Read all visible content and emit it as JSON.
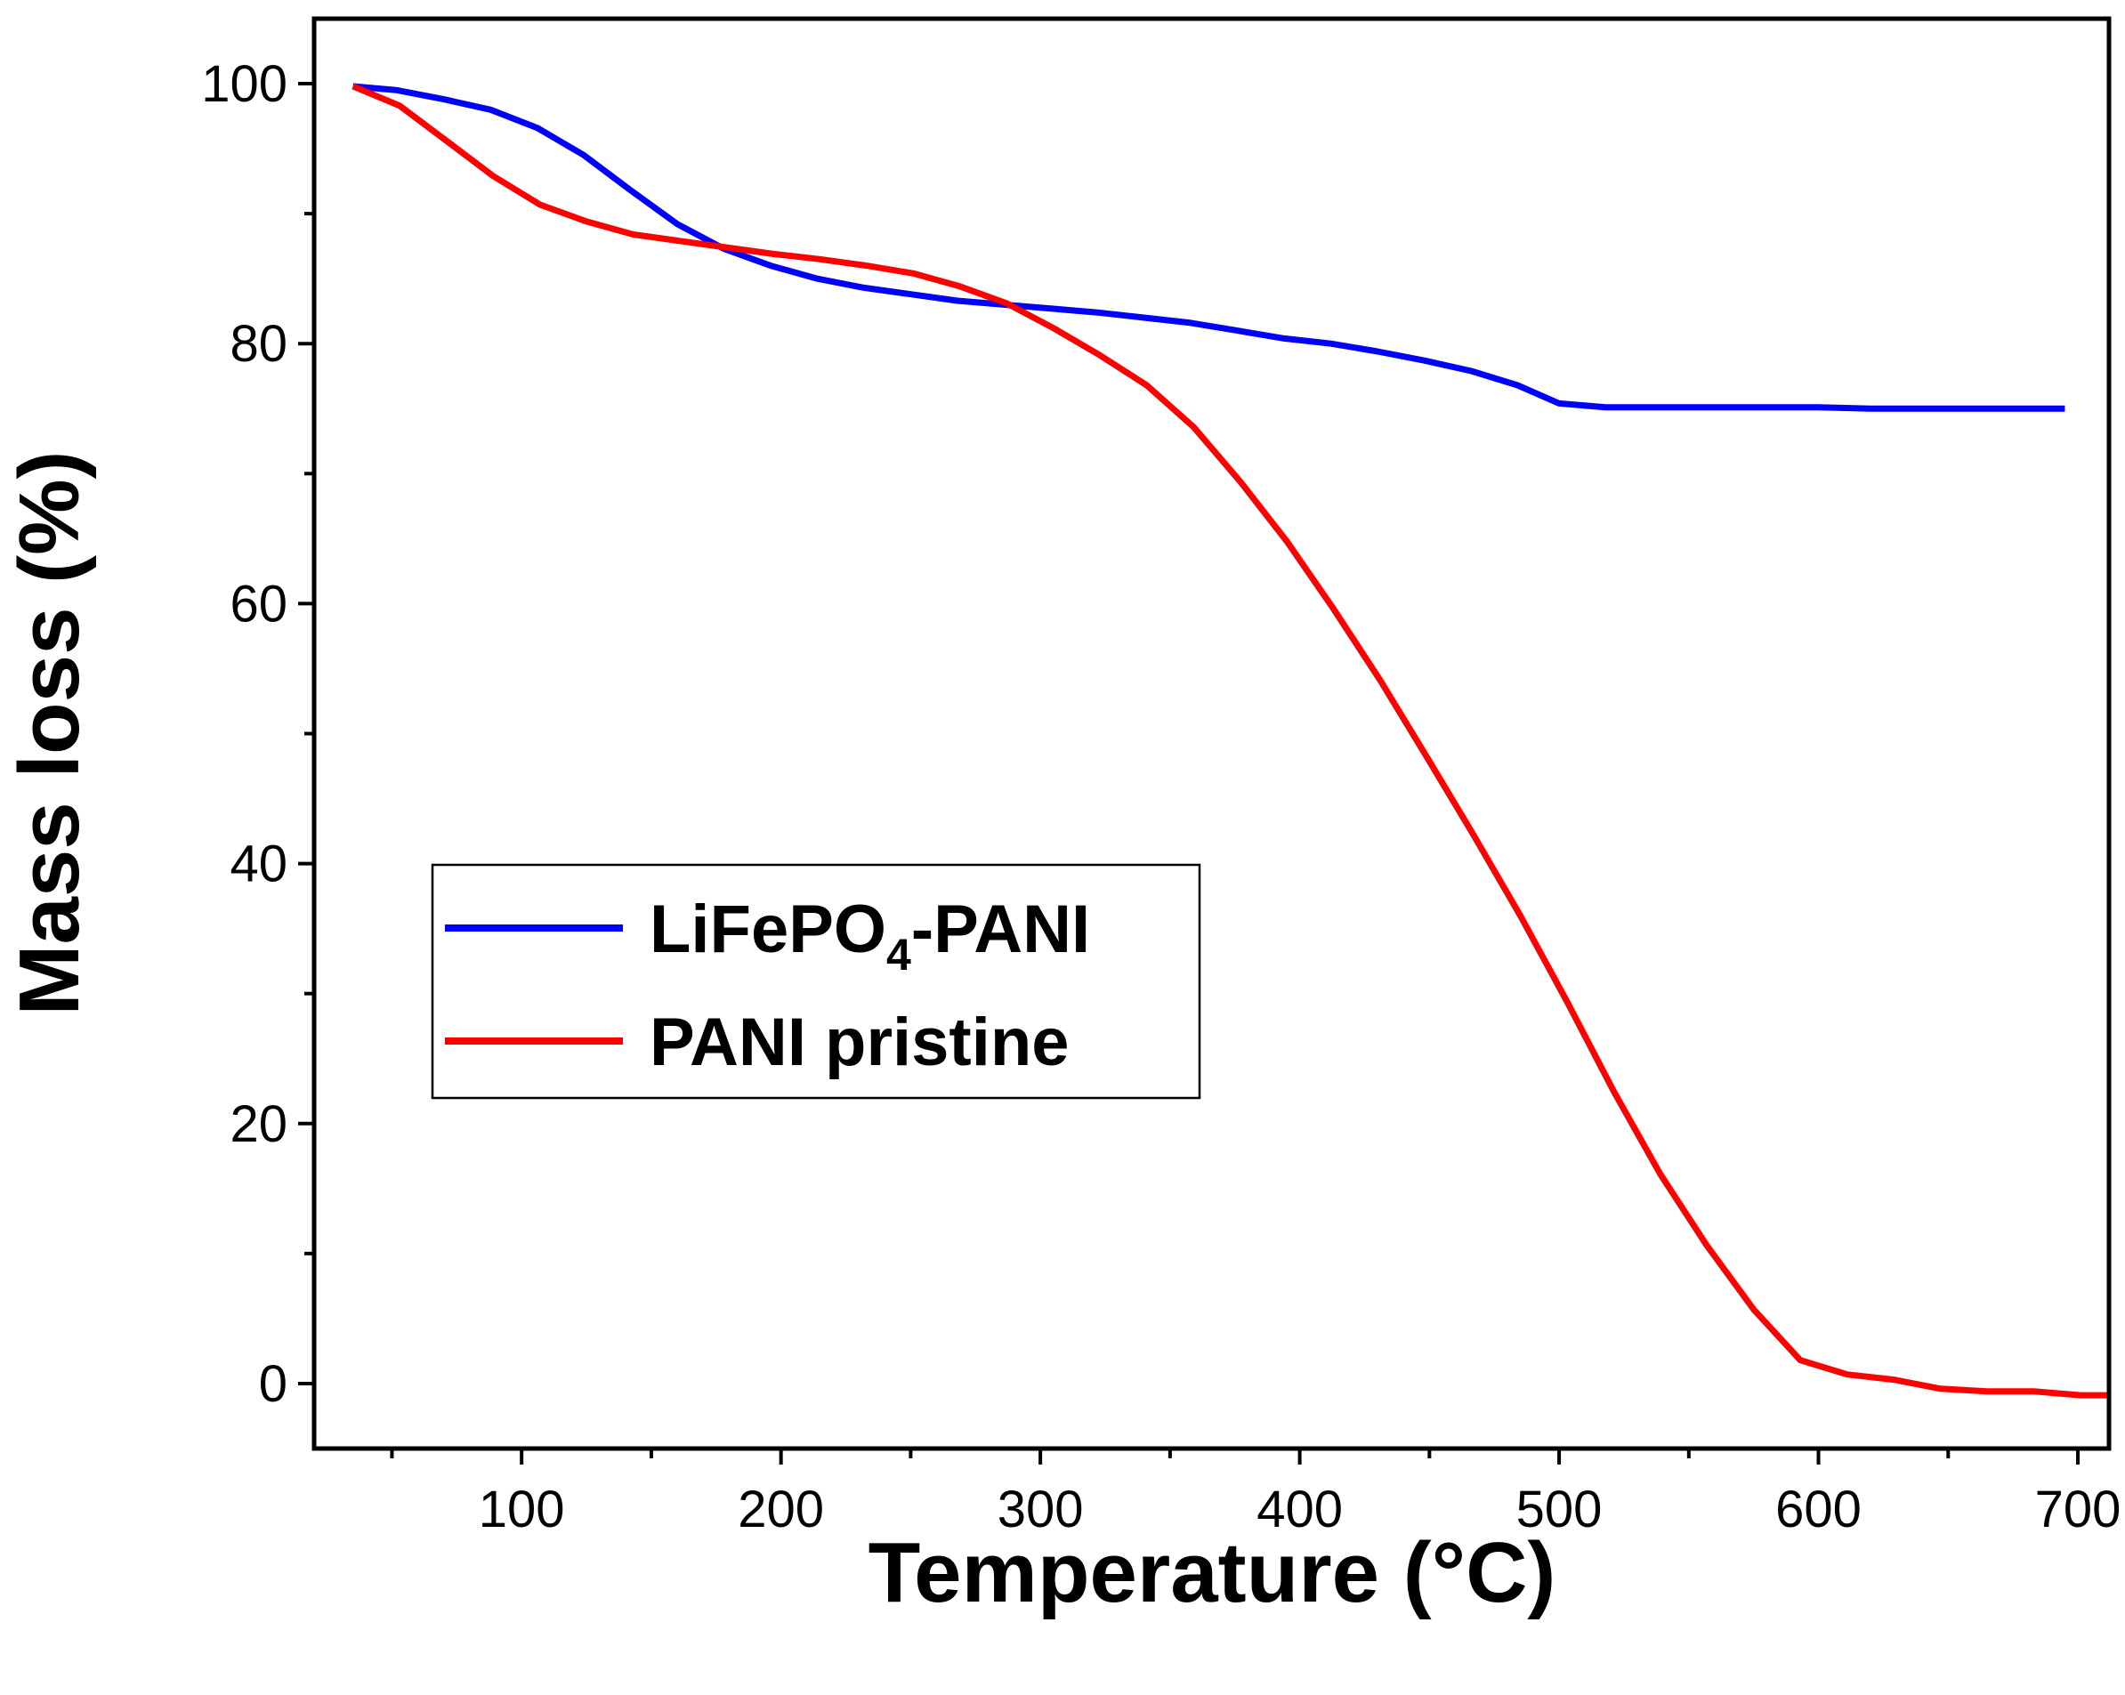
{
  "chart_data": {
    "type": "line",
    "title": "",
    "xlabel": "Temperature (°C)",
    "ylabel": "Mass loss (%)",
    "xlim": [
      20,
      712
    ],
    "ylim": [
      -5,
      105
    ],
    "xticks": [
      100,
      200,
      300,
      400,
      500,
      600,
      700
    ],
    "yticks": [
      0,
      20,
      40,
      60,
      80,
      100
    ],
    "x_minor_step": 50,
    "y_minor_step": 10,
    "grid": false,
    "legend_position": "center-left",
    "series": [
      {
        "name": "LiFePO4-PANI",
        "legend_main": "LiFePO",
        "legend_sub": "4",
        "legend_tail": "-PANI",
        "color": "#0000ff",
        "x": [
          35,
          52,
          70,
          88,
          106,
          124,
          142,
          160,
          178,
          196,
          214,
          232,
          250,
          268,
          286,
          304,
          322,
          340,
          358,
          376,
          394,
          412,
          430,
          448,
          466,
          484,
          500,
          518,
          540,
          560,
          580,
          600,
          620,
          640,
          660,
          680,
          695
        ],
        "y": [
          99.8,
          99.5,
          98.8,
          98.0,
          96.6,
          94.5,
          91.8,
          89.2,
          87.3,
          86.0,
          85.0,
          84.3,
          83.8,
          83.3,
          83.0,
          82.7,
          82.4,
          82.0,
          81.6,
          81.0,
          80.4,
          80.0,
          79.4,
          78.7,
          77.9,
          76.8,
          75.4,
          75.1,
          75.1,
          75.1,
          75.1,
          75.1,
          75.0,
          75.0,
          75.0,
          75.0,
          75.0
        ]
      },
      {
        "name": "PANI pristine",
        "legend_main": "PANI pristine",
        "legend_sub": "",
        "legend_tail": "",
        "color": "#ff0000",
        "x": [
          35,
          53,
          71,
          89,
          107,
          125,
          143,
          161,
          179,
          197,
          215,
          233,
          251,
          269,
          287,
          305,
          323,
          341,
          359,
          377,
          395,
          413,
          431,
          449,
          467,
          485,
          503,
          521,
          539,
          557,
          575,
          593,
          611,
          629,
          647,
          665,
          683,
          701,
          712
        ],
        "y": [
          99.8,
          98.3,
          95.6,
          92.9,
          90.7,
          89.4,
          88.4,
          87.9,
          87.4,
          86.9,
          86.5,
          86.0,
          85.4,
          84.4,
          83.1,
          81.2,
          79.1,
          76.8,
          73.6,
          69.4,
          64.8,
          59.6,
          54.1,
          48.2,
          42.2,
          36.0,
          29.4,
          22.5,
          16.1,
          10.6,
          5.7,
          1.8,
          0.7,
          0.3,
          -0.4,
          -0.6,
          -0.6,
          -0.9,
          -0.9
        ]
      }
    ]
  }
}
